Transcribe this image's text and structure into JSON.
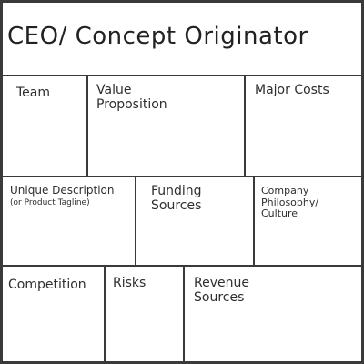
{
  "title": "CEO/ Concept Originator",
  "cells": {
    "team": "Team",
    "value_proposition": "Value\nProposition",
    "major_costs": "Major Costs",
    "unique_description": "Unique Description",
    "unique_description_sub": "(or Product Tagline)",
    "funding_sources": "Funding\nSources",
    "company_philosophy": "Company\nPhilosophy/\nCulture",
    "competition": "Competition",
    "risks": "Risks",
    "revenue_sources": "Revenue\nSources"
  },
  "colors": {
    "ink": "#2e2e2e",
    "border": "#3a3a3a",
    "paper": "#ffffff"
  }
}
